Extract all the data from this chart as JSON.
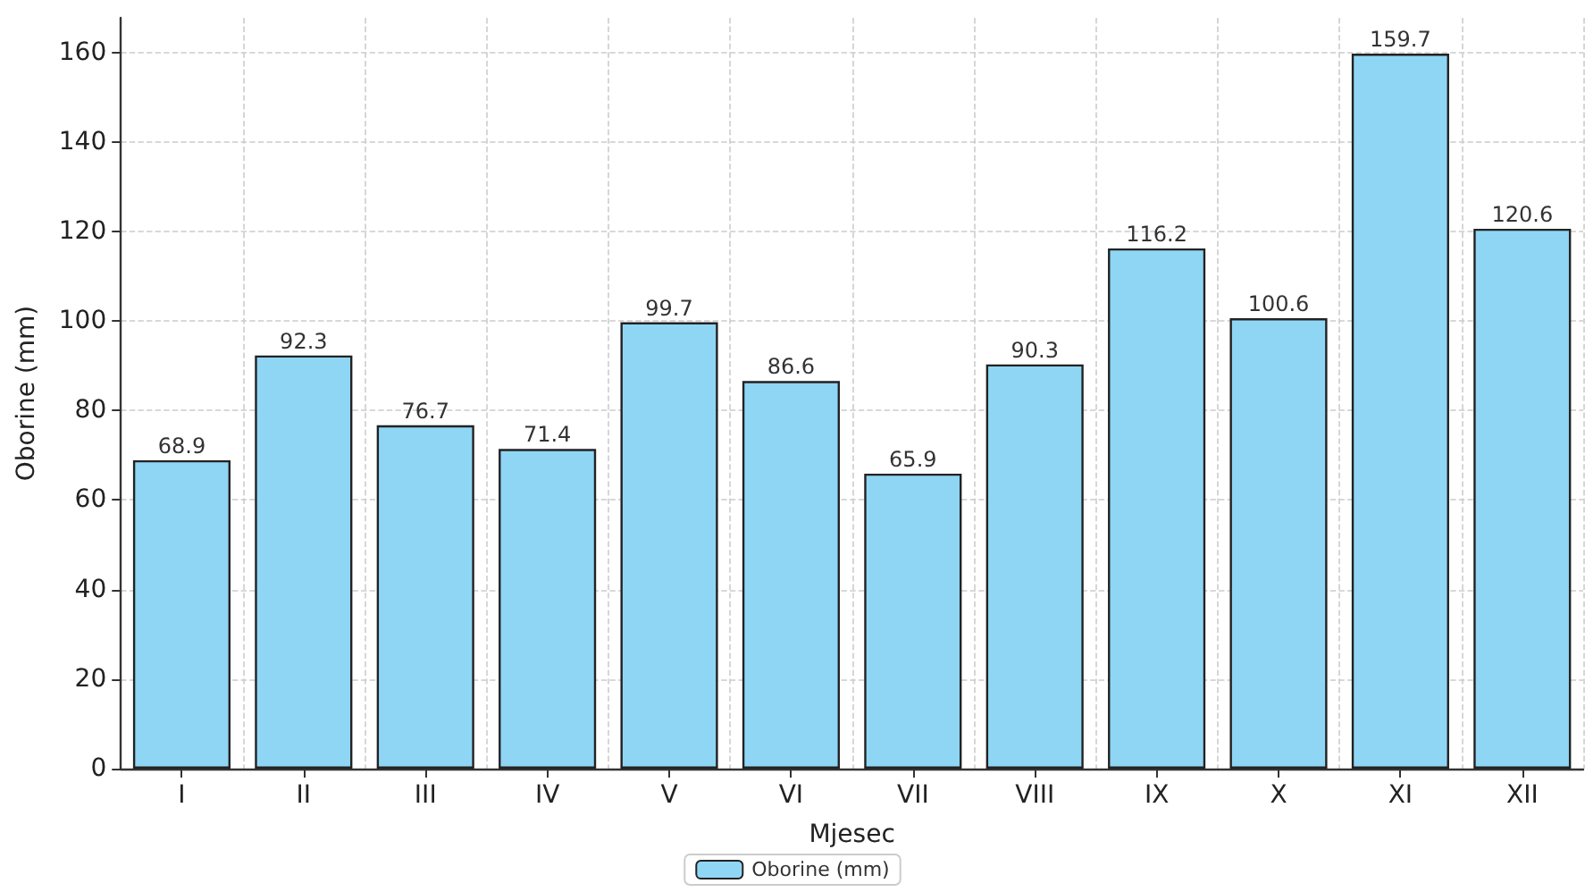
{
  "chart_data": {
    "type": "bar",
    "xlabel": "Mjesec",
    "ylabel": "Oborine (mm)",
    "categories": [
      "I",
      "II",
      "III",
      "IV",
      "V",
      "VI",
      "VII",
      "VIII",
      "IX",
      "X",
      "XI",
      "XII"
    ],
    "series": [
      {
        "name": "Oborine (mm)",
        "color": "#8fd6f5",
        "values": [
          68.9,
          92.3,
          76.7,
          71.4,
          99.7,
          86.6,
          65.9,
          90.3,
          116.2,
          100.6,
          159.7,
          120.6
        ]
      }
    ],
    "ylim": [
      0,
      167.7
    ],
    "yticks": [
      0,
      20,
      40,
      60,
      80,
      100,
      120,
      140,
      160
    ],
    "grid": true,
    "legend": "bottom",
    "data_labels": true
  }
}
